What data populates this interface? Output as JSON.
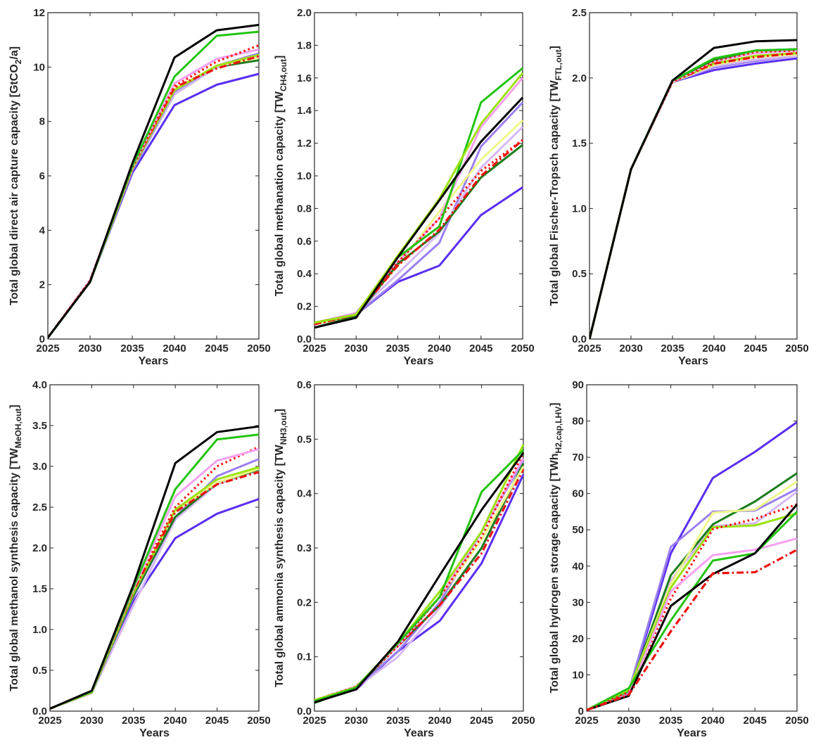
{
  "figure": {
    "layout": "2 rows x 3 columns",
    "line_styles": {
      "black": {
        "color": "#000000",
        "dash": "solid"
      },
      "green": {
        "color": "#22c40f",
        "dash": "solid"
      },
      "dark_green": {
        "color": "#1a7d1a",
        "dash": "solid"
      },
      "lime": {
        "color": "#9be30f",
        "dash": "solid"
      },
      "pale_yellow": {
        "color": "#eef78a",
        "dash": "solid"
      },
      "pink": {
        "color": "#f7a0f0",
        "dash": "solid"
      },
      "lavender": {
        "color": "#d6b8f5",
        "dash": "solid"
      },
      "medium_purple": {
        "color": "#9b7ff0",
        "dash": "solid"
      },
      "blue_violet": {
        "color": "#5a2ef0",
        "dash": "solid"
      },
      "red_dotted": {
        "color": "#ff1010",
        "dash": "dotted"
      },
      "red_dashdot": {
        "color": "#ee1010",
        "dash": "dashdot"
      }
    }
  },
  "chart_data": [
    {
      "type": "line",
      "title": "",
      "xlabel": "Years",
      "ylabel": "Total global direct air capture capacity [GtCO",
      "ylabel_sub": "2",
      "ylabel_tail": "/a]",
      "x": [
        2025,
        2030,
        2035,
        2040,
        2045,
        2050
      ],
      "xlim": [
        2025,
        2050
      ],
      "ylim": [
        0,
        12
      ],
      "yticks": [
        0,
        2,
        4,
        6,
        8,
        10,
        12
      ],
      "ytick_labels": [
        "0",
        "2",
        "4",
        "6",
        "8",
        "10",
        "12"
      ],
      "xtick_labels": [
        "2025",
        "2030",
        "2035",
        "2040",
        "2045",
        "2050"
      ],
      "grid": false,
      "series": [
        {
          "name": "blue_violet",
          "values": [
            0.05,
            2.1,
            6.1,
            8.6,
            9.35,
            9.75
          ]
        },
        {
          "name": "dark_green",
          "values": [
            0.05,
            2.1,
            6.2,
            9.0,
            10.0,
            10.25
          ]
        },
        {
          "name": "lavender",
          "values": [
            0.05,
            2.1,
            6.2,
            9.0,
            10.0,
            10.4
          ]
        },
        {
          "name": "medium_purple",
          "values": [
            0.05,
            2.1,
            6.2,
            9.1,
            10.05,
            10.5
          ]
        },
        {
          "name": "pale_yellow",
          "values": [
            0.05,
            2.1,
            6.25,
            9.2,
            10.05,
            10.35
          ]
        },
        {
          "name": "lime",
          "values": [
            0.05,
            2.1,
            6.25,
            9.15,
            10.05,
            10.45
          ]
        },
        {
          "name": "red_dashdot",
          "values": [
            0.05,
            2.15,
            6.3,
            9.25,
            9.95,
            10.4
          ]
        },
        {
          "name": "pink",
          "values": [
            0.05,
            2.15,
            6.3,
            9.4,
            10.3,
            10.65
          ]
        },
        {
          "name": "red_dotted",
          "values": [
            0.05,
            2.15,
            6.3,
            9.3,
            10.2,
            10.8
          ]
        },
        {
          "name": "green",
          "values": [
            0.05,
            2.1,
            6.35,
            9.65,
            11.15,
            11.3
          ]
        },
        {
          "name": "black",
          "values": [
            0.05,
            2.1,
            6.45,
            10.35,
            11.35,
            11.55
          ]
        }
      ]
    },
    {
      "type": "line",
      "title": "",
      "xlabel": "Years",
      "ylabel": "Total global methanation capacity [TW",
      "ylabel_sub": "CH4,out",
      "ylabel_tail": "]",
      "x": [
        2025,
        2030,
        2035,
        2040,
        2045,
        2050
      ],
      "xlim": [
        2025,
        2050
      ],
      "ylim": [
        0,
        2.0
      ],
      "yticks": [
        0,
        0.2,
        0.4,
        0.6,
        0.8,
        1.0,
        1.2,
        1.4,
        1.6,
        1.8,
        2.0
      ],
      "ytick_labels": [
        "0.0",
        "0.2",
        "0.4",
        "0.6",
        "0.8",
        "1.0",
        "1.2",
        "1.4",
        "1.6",
        "1.8",
        "2.0"
      ],
      "xtick_labels": [
        "2025",
        "2030",
        "2035",
        "2040",
        "2045",
        "2050"
      ],
      "grid": false,
      "series": [
        {
          "name": "blue_violet",
          "values": [
            0.09,
            0.15,
            0.35,
            0.45,
            0.76,
            0.93
          ]
        },
        {
          "name": "medium_purple",
          "values": [
            0.09,
            0.15,
            0.36,
            0.59,
            1.18,
            1.45
          ]
        },
        {
          "name": "lavender",
          "values": [
            0.09,
            0.16,
            0.4,
            0.65,
            1.05,
            1.3
          ]
        },
        {
          "name": "pale_yellow",
          "values": [
            0.09,
            0.15,
            0.45,
            0.78,
            1.1,
            1.34
          ]
        },
        {
          "name": "pink",
          "values": [
            0.1,
            0.16,
            0.47,
            0.74,
            1.3,
            1.6
          ]
        },
        {
          "name": "dark_green",
          "values": [
            0.07,
            0.14,
            0.46,
            0.66,
            0.99,
            1.19
          ]
        },
        {
          "name": "red_dashdot",
          "values": [
            0.09,
            0.15,
            0.45,
            0.67,
            1.0,
            1.22
          ]
        },
        {
          "name": "red_dotted",
          "values": [
            0.09,
            0.15,
            0.47,
            0.74,
            1.03,
            1.22
          ]
        },
        {
          "name": "green",
          "values": [
            0.1,
            0.15,
            0.5,
            0.69,
            1.45,
            1.66
          ]
        },
        {
          "name": "lime",
          "values": [
            0.1,
            0.15,
            0.51,
            0.86,
            1.32,
            1.63
          ]
        },
        {
          "name": "black",
          "values": [
            0.07,
            0.13,
            0.5,
            0.85,
            1.21,
            1.48
          ]
        }
      ]
    },
    {
      "type": "line",
      "title": "",
      "xlabel": "Years",
      "ylabel": "Total global Fischer-Tropsch capacity [TW",
      "ylabel_sub": "FTL,out",
      "ylabel_tail": "]",
      "x": [
        2025,
        2030,
        2035,
        2040,
        2045,
        2050
      ],
      "xlim": [
        2025,
        2050
      ],
      "ylim": [
        0,
        2.5
      ],
      "yticks": [
        0,
        0.5,
        1.0,
        1.5,
        2.0,
        2.5
      ],
      "ytick_labels": [
        "0.0",
        "0.5",
        "1.0",
        "1.5",
        "2.0",
        "2.5"
      ],
      "xtick_labels": [
        "2025",
        "2030",
        "2035",
        "2040",
        "2045",
        "2050"
      ],
      "grid": false,
      "series": [
        {
          "name": "blue_violet",
          "values": [
            0.0,
            1.3,
            1.97,
            2.06,
            2.11,
            2.15
          ]
        },
        {
          "name": "medium_purple",
          "values": [
            0.0,
            1.3,
            1.97,
            2.08,
            2.13,
            2.17
          ]
        },
        {
          "name": "lavender",
          "values": [
            0.0,
            1.3,
            1.97,
            2.09,
            2.14,
            2.17
          ]
        },
        {
          "name": "pale_yellow",
          "values": [
            0.0,
            1.3,
            1.97,
            2.1,
            2.16,
            2.18
          ]
        },
        {
          "name": "lime",
          "values": [
            0.0,
            1.3,
            1.97,
            2.11,
            2.17,
            2.19
          ]
        },
        {
          "name": "red_dashdot",
          "values": [
            0.0,
            1.3,
            1.97,
            2.11,
            2.16,
            2.19
          ]
        },
        {
          "name": "pink",
          "values": [
            0.0,
            1.3,
            1.97,
            2.13,
            2.19,
            2.21
          ]
        },
        {
          "name": "red_dotted",
          "values": [
            0.0,
            1.3,
            1.97,
            2.13,
            2.2,
            2.21
          ]
        },
        {
          "name": "dark_green",
          "values": [
            0.0,
            1.3,
            1.98,
            2.14,
            2.21,
            2.22
          ]
        },
        {
          "name": "green",
          "values": [
            0.0,
            1.3,
            1.98,
            2.15,
            2.21,
            2.22
          ]
        },
        {
          "name": "black",
          "values": [
            0.0,
            1.3,
            1.98,
            2.23,
            2.28,
            2.29
          ]
        }
      ]
    },
    {
      "type": "line",
      "title": "",
      "xlabel": "Years",
      "ylabel": "Total global methanol synthesis capacity [TW",
      "ylabel_sub": "MeOH,out",
      "ylabel_tail": "]",
      "x": [
        2025,
        2030,
        2035,
        2040,
        2045,
        2050
      ],
      "xlim": [
        2025,
        2050
      ],
      "ylim": [
        0,
        4.0
      ],
      "yticks": [
        0,
        0.5,
        1.0,
        1.5,
        2.0,
        2.5,
        3.0,
        3.5,
        4.0
      ],
      "ytick_labels": [
        "0.0",
        "0.5",
        "1.0",
        "1.5",
        "2.0",
        "2.5",
        "3.0",
        "3.5",
        "4.0"
      ],
      "xtick_labels": [
        "2025",
        "2030",
        "2035",
        "2040",
        "2045",
        "2050"
      ],
      "grid": false,
      "series": [
        {
          "name": "blue_violet",
          "values": [
            0.03,
            0.23,
            1.35,
            2.12,
            2.42,
            2.6
          ]
        },
        {
          "name": "lavender",
          "values": [
            0.03,
            0.22,
            1.3,
            2.35,
            2.78,
            2.95
          ]
        },
        {
          "name": "medium_purple",
          "values": [
            0.03,
            0.23,
            1.4,
            2.38,
            2.88,
            3.09
          ]
        },
        {
          "name": "dark_green",
          "values": [
            0.03,
            0.23,
            1.42,
            2.38,
            2.8,
            2.96
          ]
        },
        {
          "name": "pale_yellow",
          "values": [
            0.03,
            0.23,
            1.45,
            2.45,
            2.8,
            2.97
          ]
        },
        {
          "name": "lime",
          "values": [
            0.03,
            0.23,
            1.45,
            2.47,
            2.84,
            2.99
          ]
        },
        {
          "name": "red_dashdot",
          "values": [
            0.03,
            0.24,
            1.48,
            2.44,
            2.78,
            2.93
          ]
        },
        {
          "name": "red_dotted",
          "values": [
            0.03,
            0.24,
            1.5,
            2.5,
            3.0,
            3.24
          ]
        },
        {
          "name": "pink",
          "values": [
            0.03,
            0.24,
            1.5,
            2.63,
            3.07,
            3.21
          ]
        },
        {
          "name": "green",
          "values": [
            0.03,
            0.24,
            1.52,
            2.72,
            3.33,
            3.39
          ]
        },
        {
          "name": "black",
          "values": [
            0.03,
            0.25,
            1.55,
            3.04,
            3.42,
            3.49
          ]
        }
      ]
    },
    {
      "type": "line",
      "title": "",
      "xlabel": "Years",
      "ylabel": "Total global ammonia synthesis capacity [TW",
      "ylabel_sub": "NH3,out",
      "ylabel_tail": "]",
      "x": [
        2025,
        2030,
        2035,
        2040,
        2045,
        2050
      ],
      "xlim": [
        2025,
        2050
      ],
      "ylim": [
        0,
        0.6
      ],
      "yticks": [
        0,
        0.1,
        0.2,
        0.3,
        0.4,
        0.5,
        0.6
      ],
      "ytick_labels": [
        "0.0",
        "0.1",
        "0.2",
        "0.3",
        "0.4",
        "0.5",
        "0.6"
      ],
      "xtick_labels": [
        "2025",
        "2030",
        "2035",
        "2040",
        "2045",
        "2050"
      ],
      "grid": false,
      "series": [
        {
          "name": "blue_violet",
          "values": [
            0.02,
            0.04,
            0.11,
            0.166,
            0.272,
            0.435
          ]
        },
        {
          "name": "lavender",
          "values": [
            0.02,
            0.043,
            0.1,
            0.19,
            0.3,
            0.45
          ]
        },
        {
          "name": "medium_purple",
          "values": [
            0.02,
            0.043,
            0.11,
            0.2,
            0.33,
            0.46
          ]
        },
        {
          "name": "dark_green",
          "values": [
            0.015,
            0.043,
            0.12,
            0.195,
            0.3,
            0.455
          ]
        },
        {
          "name": "red_dashdot",
          "values": [
            0.02,
            0.045,
            0.12,
            0.195,
            0.29,
            0.445
          ]
        },
        {
          "name": "pale_yellow",
          "values": [
            0.02,
            0.044,
            0.125,
            0.21,
            0.315,
            0.45
          ]
        },
        {
          "name": "pink",
          "values": [
            0.02,
            0.045,
            0.12,
            0.21,
            0.33,
            0.465
          ]
        },
        {
          "name": "red_dotted",
          "values": [
            0.02,
            0.045,
            0.12,
            0.21,
            0.32,
            0.475
          ]
        },
        {
          "name": "lime",
          "values": [
            0.02,
            0.044,
            0.125,
            0.22,
            0.33,
            0.49
          ]
        },
        {
          "name": "green",
          "values": [
            0.018,
            0.043,
            0.125,
            0.21,
            0.403,
            0.48
          ]
        },
        {
          "name": "black",
          "values": [
            0.016,
            0.04,
            0.128,
            0.25,
            0.37,
            0.475
          ]
        }
      ]
    },
    {
      "type": "line",
      "title": "",
      "xlabel": "Years",
      "ylabel": "Total global hydrogen storage capacity [TWh",
      "ylabel_sub": "H2,cap,LHV",
      "ylabel_tail": "]",
      "x": [
        2025,
        2030,
        2035,
        2040,
        2045,
        2050
      ],
      "xlim": [
        2025,
        2050
      ],
      "ylim": [
        0,
        90
      ],
      "yticks": [
        0,
        10,
        20,
        30,
        40,
        50,
        60,
        70,
        80,
        90
      ],
      "ytick_labels": [
        "0",
        "10",
        "20",
        "30",
        "40",
        "50",
        "60",
        "70",
        "80",
        "90"
      ],
      "xtick_labels": [
        "2025",
        "2030",
        "2035",
        "2040",
        "2045",
        "2050"
      ],
      "grid": false,
      "series": [
        {
          "name": "blue_violet",
          "values": [
            0.3,
            5.0,
            43.5,
            64.3,
            71.5,
            79.7
          ]
        },
        {
          "name": "medium_purple",
          "values": [
            0.3,
            5.5,
            45.3,
            55.0,
            55.3,
            61.3
          ]
        },
        {
          "name": "lavender",
          "values": [
            0.3,
            5.2,
            36.0,
            51.0,
            51.8,
            60.5
          ]
        },
        {
          "name": "dark_green",
          "values": [
            0.3,
            5.5,
            37.5,
            51.5,
            57.8,
            65.6
          ]
        },
        {
          "name": "pale_yellow",
          "values": [
            0.3,
            5.8,
            35.0,
            54.7,
            55.6,
            63.3
          ]
        },
        {
          "name": "lime",
          "values": [
            0.3,
            5.8,
            34.0,
            50.7,
            51.2,
            54.5
          ]
        },
        {
          "name": "red_dotted",
          "values": [
            0.3,
            5.2,
            31.0,
            50.2,
            53.0,
            57.0
          ]
        },
        {
          "name": "pink",
          "values": [
            0.3,
            4.5,
            33.0,
            43.0,
            44.5,
            47.6
          ]
        },
        {
          "name": "green",
          "values": [
            0.3,
            6.3,
            25.0,
            41.5,
            43.5,
            55.0
          ]
        },
        {
          "name": "black",
          "values": [
            0.3,
            4.2,
            29.0,
            37.8,
            43.5,
            57.0
          ]
        },
        {
          "name": "red_dashdot",
          "values": [
            0.3,
            4.5,
            22.0,
            38.0,
            38.3,
            44.5
          ]
        }
      ]
    }
  ]
}
